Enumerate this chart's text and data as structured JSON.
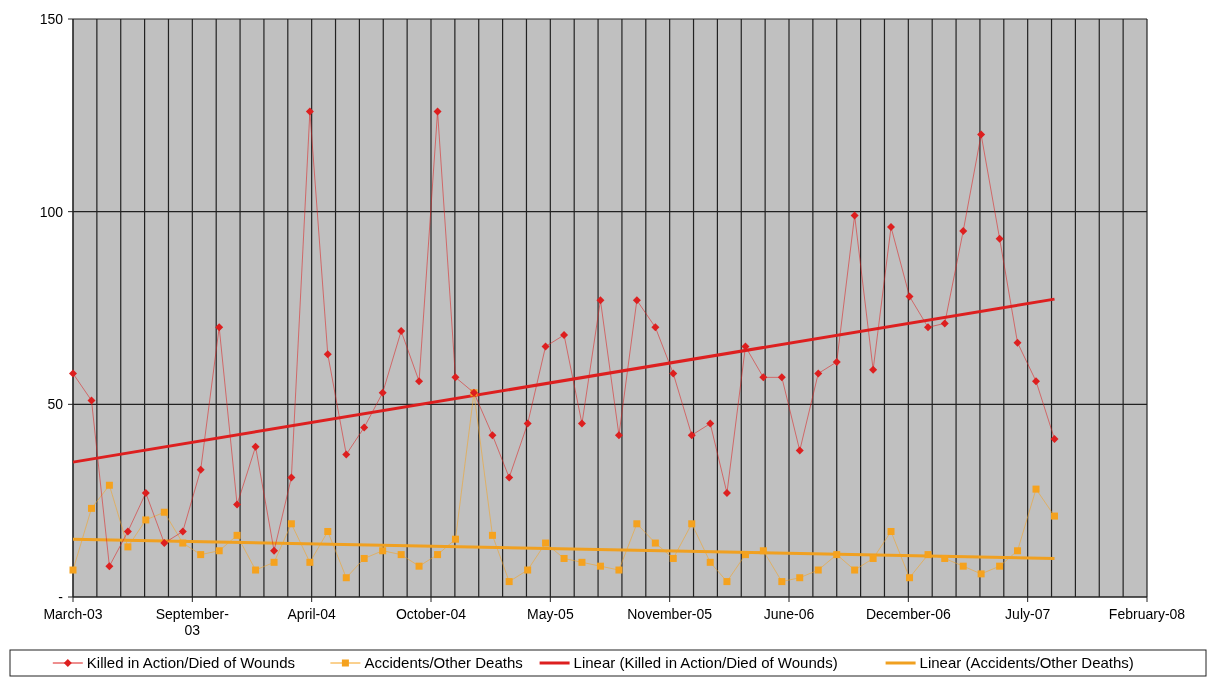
{
  "chart_data": {
    "type": "line",
    "x": [
      "2003-03",
      "2003-04",
      "2003-05",
      "2003-06",
      "2003-07",
      "2003-08",
      "2003-09",
      "2003-10",
      "2003-11",
      "2003-12",
      "2004-01",
      "2004-02",
      "2004-03",
      "2004-04",
      "2004-05",
      "2004-06",
      "2004-07",
      "2004-08",
      "2004-09",
      "2004-10",
      "2004-11",
      "2004-12",
      "2005-01",
      "2005-02",
      "2005-03",
      "2005-04",
      "2005-05",
      "2005-06",
      "2005-07",
      "2005-08",
      "2005-09",
      "2005-10",
      "2005-11",
      "2005-12",
      "2006-01",
      "2006-02",
      "2006-03",
      "2006-04",
      "2006-05",
      "2006-06",
      "2006-07",
      "2006-08",
      "2006-09",
      "2006-10",
      "2006-11",
      "2006-12",
      "2007-01",
      "2007-02",
      "2007-03",
      "2007-04",
      "2007-05",
      "2007-06",
      "2007-07",
      "2007-08",
      "2007-09"
    ],
    "series": [
      {
        "name": "Killed in Action/Died of Wounds",
        "color": "#dd1f1f",
        "marker": "diamond",
        "values": [
          58,
          51,
          8,
          17,
          27,
          14,
          17,
          33,
          70,
          24,
          39,
          12,
          31,
          126,
          63,
          37,
          44,
          53,
          69,
          56,
          126,
          57,
          53,
          42,
          31,
          45,
          65,
          68,
          45,
          77,
          42,
          77,
          70,
          58,
          42,
          45,
          27,
          65,
          57,
          57,
          38,
          58,
          61,
          99,
          59,
          96,
          78,
          70,
          71,
          95,
          120,
          93,
          66,
          56,
          41
        ]
      },
      {
        "name": "Accidents/Other Deaths",
        "color": "#f5a21e",
        "marker": "square",
        "values": [
          7,
          23,
          29,
          13,
          20,
          22,
          14,
          11,
          12,
          16,
          7,
          9,
          19,
          9,
          17,
          5,
          10,
          12,
          11,
          8,
          11,
          15,
          53,
          16,
          4,
          7,
          14,
          10,
          9,
          8,
          7,
          19,
          14,
          10,
          19,
          9,
          4,
          11,
          12,
          4,
          5,
          7,
          11,
          7,
          10,
          17,
          5,
          11,
          10,
          8,
          6,
          8,
          12,
          28,
          21
        ]
      },
      {
        "name": "Linear (Killed in Action/Died of Wounds)",
        "color": "#dd1f1f",
        "marker": "none",
        "x": [
          "2003-03",
          "2007-09"
        ],
        "values": [
          35,
          77.3
        ]
      },
      {
        "name": "Linear (Accidents/Other Deaths)",
        "color": "#f0a020",
        "marker": "none",
        "x": [
          "2003-03",
          "2007-09"
        ],
        "values": [
          15,
          10
        ]
      }
    ],
    "xlim": [
      "2003-03-01",
      "2008-02-03"
    ],
    "xticks": [
      {
        "value": "2003-03-01",
        "label": "March-03"
      },
      {
        "value": "2003-04-10",
        "label": null
      },
      {
        "value": "2003-05-20",
        "label": null
      },
      {
        "value": "2003-06-29",
        "label": null
      },
      {
        "value": "2003-08-08",
        "label": null
      },
      {
        "value": "2003-09-17",
        "label": "September-03"
      },
      {
        "value": "2003-10-27",
        "label": null
      },
      {
        "value": "2003-12-06",
        "label": null
      },
      {
        "value": "2004-01-15",
        "label": null
      },
      {
        "value": "2004-02-24",
        "label": null
      },
      {
        "value": "2004-04-04",
        "label": "April-04"
      },
      {
        "value": "2004-05-14",
        "label": null
      },
      {
        "value": "2004-06-23",
        "label": null
      },
      {
        "value": "2004-08-02",
        "label": null
      },
      {
        "value": "2004-09-11",
        "label": null
      },
      {
        "value": "2004-10-21",
        "label": "October-04"
      },
      {
        "value": "2004-11-30",
        "label": null
      },
      {
        "value": "2005-01-09",
        "label": null
      },
      {
        "value": "2005-02-18",
        "label": null
      },
      {
        "value": "2005-03-30",
        "label": null
      },
      {
        "value": "2005-05-09",
        "label": "May-05"
      },
      {
        "value": "2005-06-18",
        "label": null
      },
      {
        "value": "2005-07-28",
        "label": null
      },
      {
        "value": "2005-09-06",
        "label": null
      },
      {
        "value": "2005-10-16",
        "label": null
      },
      {
        "value": "2005-11-25",
        "label": "November-05"
      },
      {
        "value": "2006-01-04",
        "label": null
      },
      {
        "value": "2006-02-13",
        "label": null
      },
      {
        "value": "2006-03-25",
        "label": null
      },
      {
        "value": "2006-05-04",
        "label": null
      },
      {
        "value": "2006-06-13",
        "label": "June-06"
      },
      {
        "value": "2006-07-23",
        "label": null
      },
      {
        "value": "2006-09-01",
        "label": null
      },
      {
        "value": "2006-10-11",
        "label": null
      },
      {
        "value": "2006-11-20",
        "label": null
      },
      {
        "value": "2006-12-30",
        "label": "December-06"
      },
      {
        "value": "2007-02-08",
        "label": null
      },
      {
        "value": "2007-03-20",
        "label": null
      },
      {
        "value": "2007-04-29",
        "label": null
      },
      {
        "value": "2007-06-08",
        "label": null
      },
      {
        "value": "2007-07-18",
        "label": "July-07"
      },
      {
        "value": "2007-08-27",
        "label": null
      },
      {
        "value": "2007-10-06",
        "label": null
      },
      {
        "value": "2007-11-15",
        "label": null
      },
      {
        "value": "2007-12-25",
        "label": null
      },
      {
        "value": "2008-02-03",
        "label": "February-08"
      }
    ],
    "ylim": [
      0,
      150
    ],
    "yticks": [
      {
        "value": 0,
        "label": "-"
      },
      50,
      100,
      150
    ],
    "grid": true,
    "legend": "bottom"
  }
}
